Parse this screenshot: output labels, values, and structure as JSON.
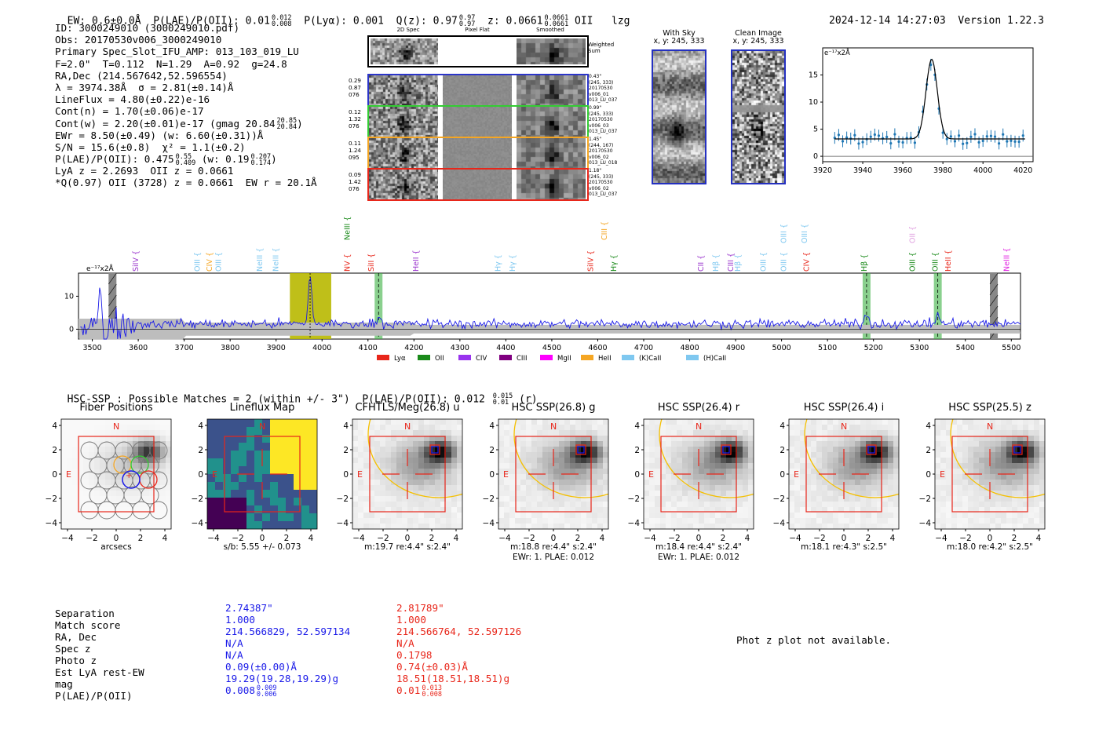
{
  "header": {
    "ew": "EW: 0.6±0.0Å",
    "plae_label": "P(LAE)/P(OII): 0.01",
    "plae_hi": "0.012",
    "plae_lo": "0.008",
    "plya": "P(Lyα): 0.001",
    "qz_label": "Q(z): 0.97",
    "qz_hi": "0.97",
    "qz_lo": "0.97",
    "z_label": "z: 0.0661",
    "z_hi": "0.0661",
    "z_lo": "0.0661",
    "z_line": "OII",
    "flag": "lzg",
    "timestamp": "2024-12-14 14:27:03",
    "version": "Version 1.22.3"
  },
  "info": {
    "l1": "ID: 3000249010 (3000249010.pdf)",
    "l2": "Obs: 20170530v006_3000249010",
    "l3": "Primary Spec_Slot_IFU_AMP: 013_103_019_LU",
    "l4": "F=2.0\"  T=0.112  N=1.29  A=0.92  g=24.8",
    "l5": "RA,Dec (214.567642,52.596554)",
    "l6": "λ = 3974.38Å  σ = 2.81(±0.14)Å",
    "l7": "LineFlux = 4.80(±0.22)e-16",
    "l8": "Cont(n) = 1.70(±0.06)e-17",
    "l9": "Cont(w) = 2.20(±0.01)e-17 (gmag 20.84",
    "l9_hi": "20.85",
    "l9_lo": "20.84",
    "l10": "EWr = 8.50(±0.49) (w: 6.60(±0.31))Å",
    "l11": "S/N = 15.6(±0.8)  χ² = 1.1(±0.2)",
    "l12": "P(LAE)/P(OII): 0.475",
    "l12_hi": "0.55",
    "l12_lo": "0.409",
    "l12b": "(w: 0.19",
    "l12b_hi": "0.207",
    "l12b_lo": "0.174",
    "l13": "LyA z = 2.2693  OII z = 0.0661",
    "l14": "*Q(0.97) OII (3728) z = 0.0661  EW r = 20.1Å"
  },
  "cutouts": {
    "col_2d": "2D Spec",
    "col_flat": "Pixel Flat",
    "col_smooth": "Smoothed",
    "weighted": "Weighted Sum",
    "rows": [
      {
        "left": [
          "0.29",
          "0.87",
          "076"
        ],
        "right": [
          "0.43\"",
          "(245, 333)",
          "20170530",
          "v006_01",
          "013_LU_037"
        ],
        "color": "#2b35c9"
      },
      {
        "left": [
          "0.12",
          "1.32",
          "076"
        ],
        "right": [
          "0.99\"",
          "(245, 333)",
          "20170530",
          "v006_03",
          "013_LU_037"
        ],
        "color": "#33cc33"
      },
      {
        "left": [
          "0.11",
          "1.24",
          "095"
        ],
        "right": [
          "1.45\"",
          "(244, 167)",
          "20170530",
          "v006_02",
          "013_LU_018"
        ],
        "color": "#f5a623"
      },
      {
        "left": [
          "0.09",
          "1.42",
          "076"
        ],
        "right": [
          "1.18\"",
          "(245, 333)",
          "20170530",
          "v006_02",
          "013_LU_037"
        ],
        "color": "#e8261a"
      }
    ]
  },
  "sky": {
    "with_title": "With Sky",
    "with_coord": "x, y: 245, 333",
    "clean_title": "Clean Image",
    "clean_coord": "x, y: 245, 333"
  },
  "line_fit": {
    "type": "scatter",
    "unit_label": "e⁻¹⁷x2Å",
    "xlim": [
      3920,
      4025
    ],
    "ylim": [
      -1,
      20
    ],
    "xticks": [
      3920,
      3940,
      3960,
      3980,
      4000,
      4020
    ],
    "yticks": [
      0,
      5,
      10,
      15
    ],
    "center": 3974.4,
    "sigma": 2.81,
    "amp": 14.7,
    "continuum": 3.2
  },
  "spectrum": {
    "unit_label": "e⁻¹⁷x2Å",
    "xlim": [
      3470,
      5520
    ],
    "xticks": [
      3500,
      3600,
      3700,
      3800,
      3900,
      4000,
      4100,
      4200,
      4300,
      4400,
      4500,
      4600,
      4700,
      4800,
      4900,
      5000,
      5100,
      5200,
      5300,
      5400,
      5500
    ],
    "yticks": [
      0,
      10
    ],
    "ylim": [
      -3,
      17
    ],
    "highlight": {
      "start": 3930,
      "end": 4020,
      "peak": 3974
    },
    "green_bands": [
      4123,
      5185,
      5340
    ],
    "gray_bands": [
      3544,
      5462
    ],
    "lines": [
      {
        "label": "SiIV",
        "color": "#9933cc",
        "wave": 3600,
        "tier": 2
      },
      {
        "label": "OIII",
        "color": "#7fc8f0",
        "wave": 3734,
        "tier": 2
      },
      {
        "label": "CIV",
        "color": "#f5a623",
        "wave": 3760,
        "tier": 2
      },
      {
        "label": "OIII",
        "color": "#7fc8f0",
        "wave": 3780,
        "tier": 2
      },
      {
        "label": "NeIII",
        "color": "#7fc8f0",
        "wave": 3870,
        "tier": 2
      },
      {
        "label": "NeIII",
        "color": "#7fc8f0",
        "wave": 3905,
        "tier": 2
      },
      {
        "label": "NV",
        "color": "#e8261a",
        "wave": 4060,
        "tier": 2
      },
      {
        "label": "NeIII",
        "color": "#1a8a1a",
        "wave": 4060,
        "tier": 0
      },
      {
        "label": "SiII",
        "color": "#e8261a",
        "wave": 4112,
        "tier": 2
      },
      {
        "label": "HeII",
        "color": "#9933cc",
        "wave": 4210,
        "tier": 2
      },
      {
        "label": "Hγ",
        "color": "#7fc8f0",
        "wave": 4388,
        "tier": 2
      },
      {
        "label": "Hγ",
        "color": "#7fc8f0",
        "wave": 4420,
        "tier": 2
      },
      {
        "label": "CIII",
        "color": "#f5a623",
        "wave": 4620,
        "tier": 0
      },
      {
        "label": "SiIV",
        "color": "#e8261a",
        "wave": 4590,
        "tier": 2
      },
      {
        "label": "Hγ",
        "color": "#1a8a1a",
        "wave": 4640,
        "tier": 2
      },
      {
        "label": "CII",
        "color": "#9933cc",
        "wave": 4830,
        "tier": 2
      },
      {
        "label": "Hβ",
        "color": "#7fc8f0",
        "wave": 4862,
        "tier": 2
      },
      {
        "label": "CIII",
        "color": "#9933cc",
        "wave": 4895,
        "tier": 2
      },
      {
        "label": "Hβ",
        "color": "#7fc8f0",
        "wave": 4910,
        "tier": 2
      },
      {
        "label": "OIII",
        "color": "#7fc8f0",
        "wave": 4966,
        "tier": 2
      },
      {
        "label": "OIII",
        "color": "#7fc8f0",
        "wave": 5010,
        "tier": 1
      },
      {
        "label": "OIII",
        "color": "#7fc8f0",
        "wave": 5010,
        "tier": 2
      },
      {
        "label": "OIII",
        "color": "#7fc8f0",
        "wave": 5055,
        "tier": 1
      },
      {
        "label": "CIV",
        "color": "#e8261a",
        "wave": 5060,
        "tier": 2
      },
      {
        "label": "Hβ",
        "color": "#1a8a1a",
        "wave": 5185,
        "tier": 2
      },
      {
        "label": "OII",
        "color": "#e0a0e0",
        "wave": 5290,
        "tier": 1
      },
      {
        "label": "OIII",
        "color": "#1a8a1a",
        "wave": 5290,
        "tier": 2
      },
      {
        "label": "OIII",
        "color": "#1a8a1a",
        "wave": 5340,
        "tier": 2
      },
      {
        "label": "HeII",
        "color": "#e8261a",
        "wave": 5368,
        "tier": 2
      },
      {
        "label": "NeIII",
        "color": "#e020e0",
        "wave": 5495,
        "tier": 2
      }
    ],
    "legend": [
      {
        "label": "Lyα",
        "color": "#e8261a"
      },
      {
        "label": "OII",
        "color": "#1a8a1a"
      },
      {
        "label": "CIV",
        "color": "#9933ee"
      },
      {
        "label": "CIII",
        "color": "#800080"
      },
      {
        "label": "MgII",
        "color": "#ff00ff"
      },
      {
        "label": "HeII",
        "color": "#f5a623"
      },
      {
        "label": "(K)CaII",
        "color": "#7fc8f0"
      },
      {
        "label": "(H)CaII",
        "color": "#7fc8f0"
      }
    ]
  },
  "matches": {
    "line": "HSC-SSP : Possible Matches = 2 (within +/- 3\")  P(LAE)/P(OII): 0.012",
    "hi": "0.015",
    "lo": "0.01",
    "band": "(r)"
  },
  "imaging": [
    {
      "title": "Fiber Positions",
      "sub1": "arcsecs",
      "sub2": ""
    },
    {
      "title": "Lineflux Map",
      "sub1": "s/b: 5.55 +/- 0.073",
      "sub2": ""
    },
    {
      "title": "CFHTLS/Meg(26.8) u",
      "sub1": "m:19.7  re:4.4\"  s:2.4\"",
      "sub2": ""
    },
    {
      "title": "HSC SSP(26.8) g",
      "sub1": "m:18.8  re:4.4\"  s:2.4\"",
      "sub2": "EWr: 1. PLAE: 0.012"
    },
    {
      "title": "HSC SSP(26.4) r",
      "sub1": "m:18.4  re:4.4\"  s:2.4\"",
      "sub2": "EWr: 1. PLAE: 0.012"
    },
    {
      "title": "HSC SSP(26.4) i",
      "sub1": "m:18.1  re:4.3\"  s:2.5\"",
      "sub2": ""
    },
    {
      "title": "HSC SSP(25.5) z",
      "sub1": "m:18.0  re:4.2\"  s:2.5\"",
      "sub2": ""
    }
  ],
  "axis_ticks": [
    "4",
    "2",
    "0",
    "−2",
    "−4"
  ],
  "axis_xticks": [
    "−4",
    "−2",
    "0",
    "2",
    "4"
  ],
  "compass": {
    "n": "N",
    "e": "E"
  },
  "table": {
    "labels": [
      "Separation",
      "Match score",
      "RA, Dec",
      "Spec z",
      "Photo z",
      "Est LyA rest-EW",
      "mag",
      "P(LAE)/P(OII)"
    ],
    "blue": [
      "2.74387\"",
      "1.000",
      "214.566829, 52.597134",
      "N/A",
      "N/A",
      "0.09(±0.00)Å",
      "19.29(19.28,19.29)g",
      "0.008"
    ],
    "blue_hi": "0.009",
    "blue_lo": "0.006",
    "red": [
      "2.81789\"",
      "1.000",
      "214.566764, 52.597126",
      "N/A",
      "0.1798",
      "0.74(±0.03)Å",
      "18.51(18.51,18.51)g",
      "0.01"
    ],
    "red_hi": "0.013",
    "red_lo": "0.008",
    "photz_note": "Phot z plot not available."
  }
}
